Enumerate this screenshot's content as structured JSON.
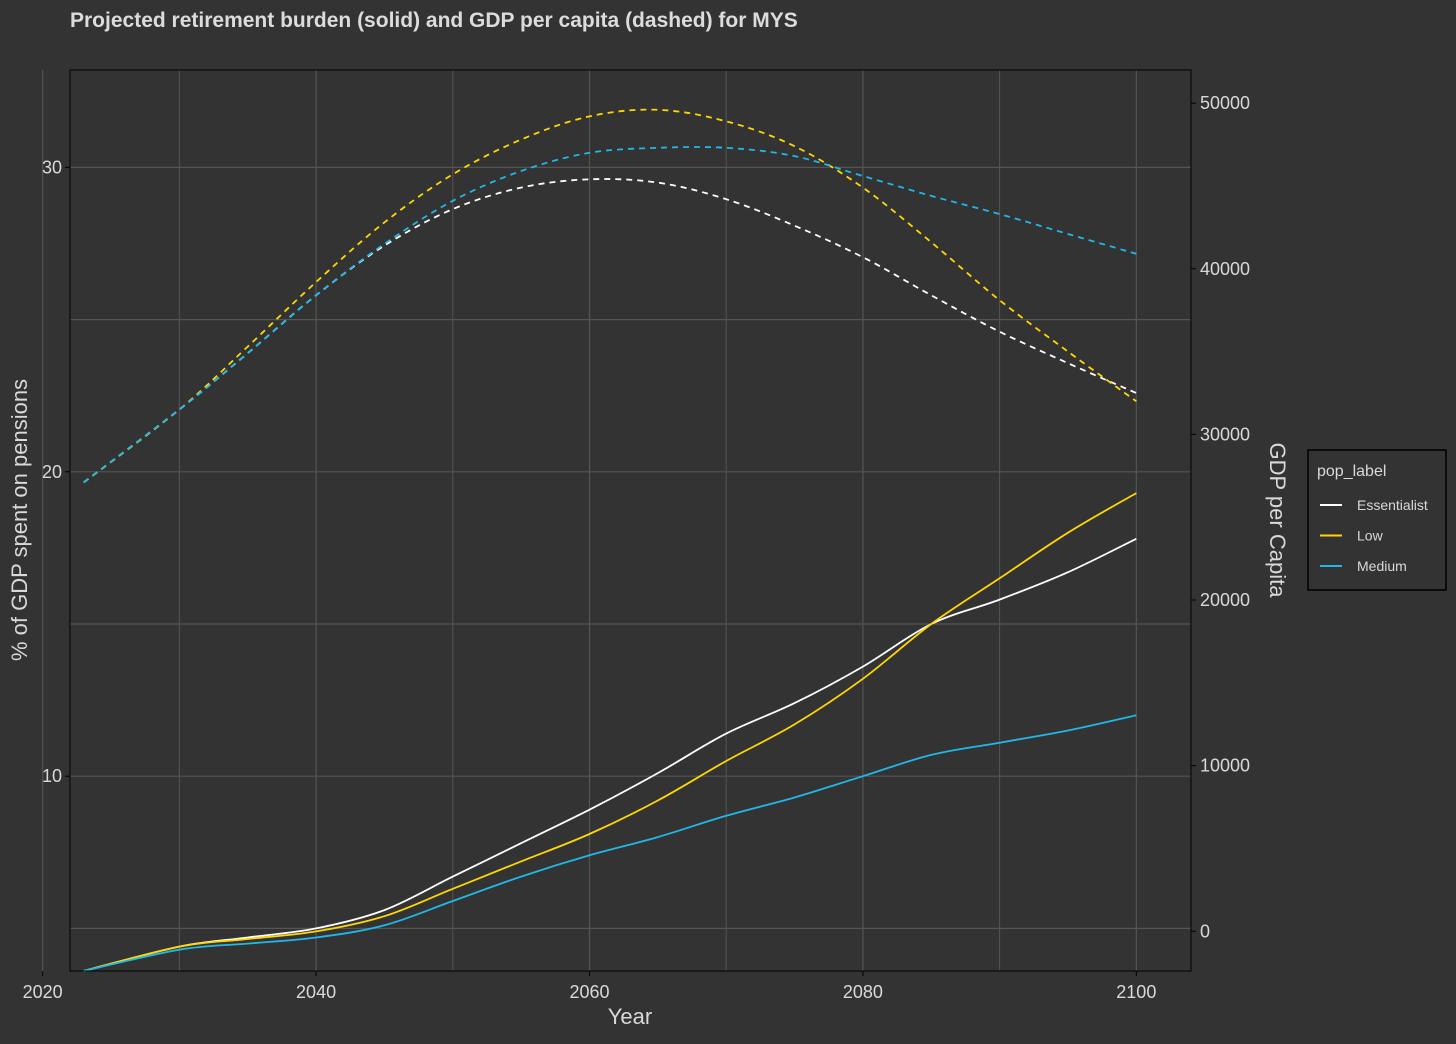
{
  "chart_data": {
    "type": "line",
    "title": "Projected retirement burden (solid) and GDP per capita (dashed) for MYS",
    "xlabel": "Year",
    "ylabel": "% of GDP spent on pensions",
    "y2label": "GDP per Capita",
    "xlim": [
      2022,
      2104
    ],
    "ylim": [
      3.6,
      33.2
    ],
    "y2lim": [
      -2400,
      52000
    ],
    "x_ticks": [
      2020,
      2040,
      2060,
      2080,
      2100
    ],
    "y_ticks": [
      10,
      20,
      30
    ],
    "y2_ticks": [
      0,
      10000,
      20000,
      30000,
      40000,
      50000
    ],
    "grid": true,
    "legend": {
      "title": "pop_label",
      "position": "right",
      "entries": [
        "Essentialist",
        "Low",
        "Medium"
      ]
    },
    "colors": {
      "Essentialist": "#ffffff",
      "Low": "#ffd700",
      "Medium": "#1fb8e8",
      "background": "#333333",
      "grid": "#555555",
      "text": "#d9d9d9"
    },
    "series": [
      {
        "name": "Essentialist",
        "pension_pct": [
          [
            2023,
            3.6
          ],
          [
            2030,
            4.4
          ],
          [
            2035,
            4.7
          ],
          [
            2040,
            5.0
          ],
          [
            2045,
            5.6
          ],
          [
            2050,
            6.7
          ],
          [
            2055,
            7.8
          ],
          [
            2060,
            8.9
          ],
          [
            2065,
            10.1
          ],
          [
            2070,
            11.4
          ],
          [
            2075,
            12.4
          ],
          [
            2080,
            13.6
          ],
          [
            2085,
            15.0
          ],
          [
            2090,
            15.8
          ],
          [
            2095,
            16.7
          ],
          [
            2100,
            17.8
          ]
        ],
        "gdp_per_capita": [
          [
            2023,
            27100
          ],
          [
            2030,
            31500
          ],
          [
            2035,
            34900
          ],
          [
            2040,
            38400
          ],
          [
            2045,
            41400
          ],
          [
            2050,
            43600
          ],
          [
            2055,
            44900
          ],
          [
            2060,
            45400
          ],
          [
            2065,
            45200
          ],
          [
            2070,
            44200
          ],
          [
            2075,
            42600
          ],
          [
            2080,
            40700
          ],
          [
            2085,
            38400
          ],
          [
            2090,
            36200
          ],
          [
            2095,
            34300
          ],
          [
            2100,
            32500
          ]
        ]
      },
      {
        "name": "Low",
        "pension_pct": [
          [
            2023,
            3.6
          ],
          [
            2030,
            4.4
          ],
          [
            2035,
            4.65
          ],
          [
            2040,
            4.9
          ],
          [
            2045,
            5.4
          ],
          [
            2050,
            6.3
          ],
          [
            2055,
            7.2
          ],
          [
            2060,
            8.1
          ],
          [
            2065,
            9.2
          ],
          [
            2070,
            10.5
          ],
          [
            2075,
            11.7
          ],
          [
            2080,
            13.2
          ],
          [
            2085,
            15.0
          ],
          [
            2090,
            16.5
          ],
          [
            2095,
            18.0
          ],
          [
            2100,
            19.3
          ]
        ],
        "gdp_per_capita": [
          [
            2023,
            27100
          ],
          [
            2030,
            31500
          ],
          [
            2035,
            35300
          ],
          [
            2040,
            39200
          ],
          [
            2045,
            42800
          ],
          [
            2050,
            45700
          ],
          [
            2055,
            47800
          ],
          [
            2060,
            49200
          ],
          [
            2065,
            49600
          ],
          [
            2070,
            48900
          ],
          [
            2075,
            47400
          ],
          [
            2080,
            44900
          ],
          [
            2085,
            41600
          ],
          [
            2090,
            38100
          ],
          [
            2095,
            35000
          ],
          [
            2100,
            32000
          ]
        ]
      },
      {
        "name": "Medium",
        "pension_pct": [
          [
            2023,
            3.6
          ],
          [
            2030,
            4.3
          ],
          [
            2035,
            4.5
          ],
          [
            2040,
            4.7
          ],
          [
            2045,
            5.1
          ],
          [
            2050,
            5.9
          ],
          [
            2055,
            6.7
          ],
          [
            2060,
            7.4
          ],
          [
            2065,
            8.0
          ],
          [
            2070,
            8.7
          ],
          [
            2075,
            9.3
          ],
          [
            2080,
            10.0
          ],
          [
            2085,
            10.7
          ],
          [
            2090,
            11.1
          ],
          [
            2095,
            11.5
          ],
          [
            2100,
            12.0
          ]
        ],
        "gdp_per_capita": [
          [
            2023,
            27100
          ],
          [
            2030,
            31500
          ],
          [
            2035,
            34900
          ],
          [
            2040,
            38400
          ],
          [
            2045,
            41500
          ],
          [
            2050,
            44100
          ],
          [
            2055,
            45900
          ],
          [
            2060,
            47000
          ],
          [
            2065,
            47300
          ],
          [
            2070,
            47300
          ],
          [
            2075,
            46800
          ],
          [
            2080,
            45600
          ],
          [
            2085,
            44400
          ],
          [
            2090,
            43300
          ],
          [
            2095,
            42100
          ],
          [
            2100,
            40900
          ]
        ]
      }
    ]
  }
}
